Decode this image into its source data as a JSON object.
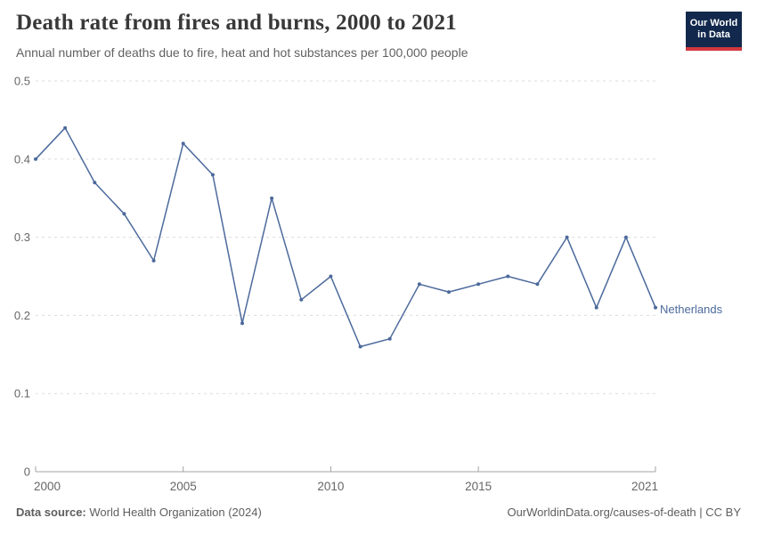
{
  "logo": {
    "line1": "Our World",
    "line2": "in Data"
  },
  "footer": {
    "source_label": "Data source:",
    "source_value": " World Health Organization (2024)",
    "credit": "OurWorldinData.org/causes-of-death | CC BY"
  },
  "chart_data": {
    "type": "line",
    "title": "Death rate from fires and burns, 2000 to 2021",
    "subtitle": "Annual number of deaths due to fire, heat and hot substances per 100,000 people",
    "x": [
      2000,
      2001,
      2002,
      2003,
      2004,
      2005,
      2006,
      2007,
      2008,
      2009,
      2010,
      2011,
      2012,
      2013,
      2014,
      2015,
      2016,
      2017,
      2018,
      2019,
      2020,
      2021
    ],
    "series": [
      {
        "name": "Netherlands",
        "color": "#4C6A9C",
        "values": [
          0.4,
          0.44,
          0.37,
          0.33,
          0.27,
          0.42,
          0.38,
          0.19,
          0.35,
          0.22,
          0.25,
          0.16,
          0.17,
          0.24,
          0.23,
          0.24,
          0.25,
          0.24,
          0.3,
          0.21,
          0.3,
          0.21
        ]
      }
    ],
    "xlim": [
      2000,
      2021
    ],
    "ylim": [
      0,
      0.5
    ],
    "xticks": [
      2000,
      2005,
      2010,
      2015,
      2021
    ],
    "yticks": [
      0,
      0.1,
      0.2,
      0.3,
      0.4,
      0.5
    ],
    "ytick_labels": [
      "0",
      "0.1",
      "0.2",
      "0.3",
      "0.4",
      "0.5"
    ],
    "grid": "horizontal-dashed",
    "legend_position": "end-of-line",
    "colors": {
      "series": "#4C6A9C",
      "gridline": "#dcdcdc",
      "axis": "#a3a3a3",
      "tick_text": "#666666"
    }
  }
}
